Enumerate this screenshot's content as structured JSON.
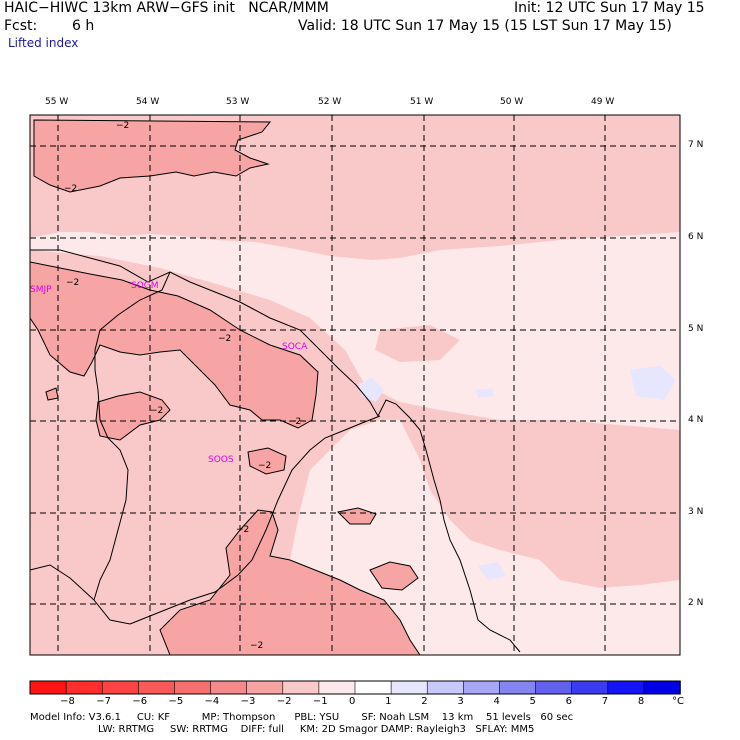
{
  "header": {
    "title": "HAIC−HIWC 13km ARW−GFS init   NCAR/MMM",
    "init": "Init: 12 UTC Sun 17 May 15",
    "fcst_label": "Fcst:",
    "fcst_value": "6 h",
    "valid": "Valid: 18 UTC Sun 17 May 15 (15 LST Sun 17 May 15)",
    "field": "Lifted index"
  },
  "map": {
    "lon_ticks": [
      "55 W",
      "54 W",
      "53 W",
      "52 W",
      "51 W",
      "50 W",
      "49 W"
    ],
    "lat_ticks": [
      "7 N",
      "6 N",
      "5 N",
      "4 N",
      "3 N",
      "2 N"
    ],
    "stations": [
      "SMJP",
      "SOGM",
      "SOCA",
      "SOOS"
    ],
    "contour_label": "−2",
    "station_color": "#e000e0"
  },
  "colorbar": {
    "labels": [
      "−8",
      "−7",
      "−6",
      "−5",
      "−4",
      "−3",
      "−2",
      "−1",
      "0",
      "1",
      "2",
      "3",
      "4",
      "5",
      "6",
      "7",
      "8"
    ],
    "unit": "°C",
    "colors": [
      "#ff1414",
      "#ff2d2d",
      "#fd4343",
      "#f95959",
      "#f77070",
      "#f68989",
      "#f6a4a4",
      "#f9c9c9",
      "#fde9e9",
      "#ffffff",
      "#e6e6ff",
      "#c8c8fa",
      "#a7a7f5",
      "#8585f2",
      "#6161ee",
      "#3b3bf0",
      "#1414f5",
      "#0000e6"
    ]
  },
  "footer": {
    "line1": "Model Info: V3.6.1     CU: KF          MP: Thompson      PBL: YSU       SF: Noah LSM    13 km    51 levels   60 sec",
    "line2": "LW: RRTMG     SW: RRTMG    DIFF: full     KM: 2D Smagor DAMP: Rayleigh3   SFLAY: MM5"
  }
}
